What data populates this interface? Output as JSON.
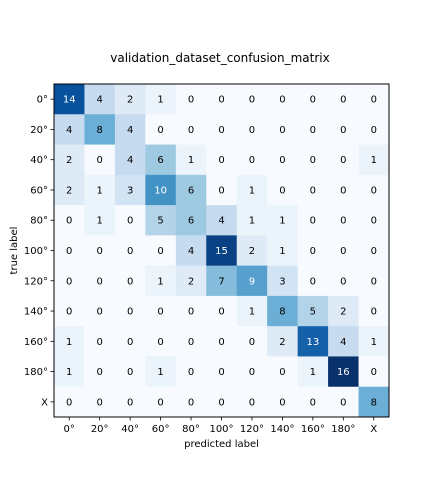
{
  "chart_data": {
    "type": "heatmap",
    "title": "validation_dataset_confusion_matrix",
    "xlabel": "predicted label",
    "ylabel": "true label",
    "x_categories": [
      "0°",
      "20°",
      "40°",
      "60°",
      "80°",
      "100°",
      "120°",
      "140°",
      "160°",
      "180°",
      "X"
    ],
    "y_categories": [
      "0°",
      "20°",
      "40°",
      "60°",
      "80°",
      "100°",
      "120°",
      "140°",
      "160°",
      "180°",
      "X"
    ],
    "values": [
      [
        14,
        4,
        2,
        1,
        0,
        0,
        0,
        0,
        0,
        0,
        0
      ],
      [
        4,
        8,
        4,
        0,
        0,
        0,
        0,
        0,
        0,
        0,
        0
      ],
      [
        2,
        0,
        4,
        6,
        1,
        0,
        0,
        0,
        0,
        0,
        1
      ],
      [
        2,
        1,
        3,
        10,
        6,
        0,
        1,
        0,
        0,
        0,
        0
      ],
      [
        0,
        1,
        0,
        5,
        6,
        4,
        1,
        1,
        0,
        0,
        0
      ],
      [
        0,
        0,
        0,
        0,
        4,
        15,
        2,
        1,
        0,
        0,
        0
      ],
      [
        0,
        0,
        0,
        1,
        2,
        7,
        9,
        3,
        0,
        0,
        0
      ],
      [
        0,
        0,
        0,
        0,
        0,
        0,
        1,
        8,
        5,
        2,
        0
      ],
      [
        1,
        0,
        0,
        0,
        0,
        0,
        0,
        2,
        13,
        4,
        1
      ],
      [
        1,
        0,
        0,
        1,
        0,
        0,
        0,
        0,
        1,
        16,
        0
      ],
      [
        0,
        0,
        0,
        0,
        0,
        0,
        0,
        0,
        0,
        0,
        8
      ]
    ],
    "colormap": "Blues",
    "vmin": 0,
    "vmax": 16,
    "grid": false,
    "legend": "none"
  }
}
